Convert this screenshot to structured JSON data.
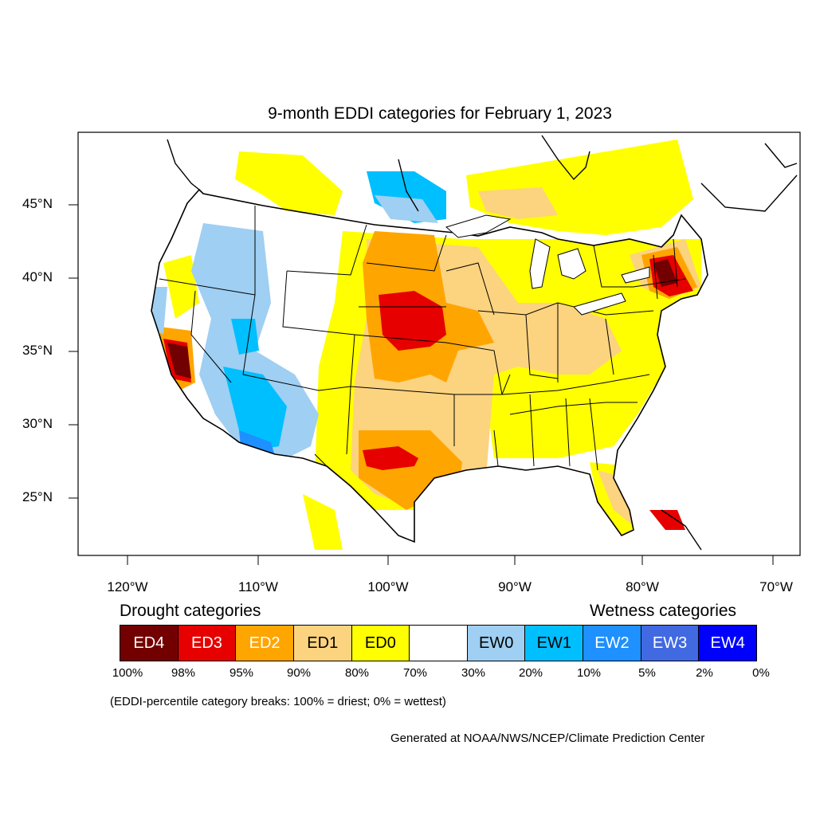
{
  "title": "9-month EDDI categories for February 1, 2023",
  "lat_labels": [
    "45°N",
    "40°N",
    "35°N",
    "30°N",
    "25°N"
  ],
  "lon_labels": [
    "120°W",
    "110°W",
    "100°W",
    "90°W",
    "80°W",
    "70°W"
  ],
  "legend": {
    "drought_heading": "Drought categories",
    "wetness_heading": "Wetness categories",
    "categories": [
      {
        "label": "ED4",
        "color": "#730000",
        "text_color": "#ffffff"
      },
      {
        "label": "ED3",
        "color": "#e60000",
        "text_color": "#ffffff"
      },
      {
        "label": "ED2",
        "color": "#ffa500",
        "text_color": "#ffffff"
      },
      {
        "label": "ED1",
        "color": "#fcd37f",
        "text_color": "#000000"
      },
      {
        "label": "ED0",
        "color": "#ffff00",
        "text_color": "#000000"
      },
      {
        "label": "",
        "color": "#ffffff",
        "text_color": "#000000"
      },
      {
        "label": "EW0",
        "color": "#9fcff2",
        "text_color": "#000000"
      },
      {
        "label": "EW1",
        "color": "#00bfff",
        "text_color": "#000000"
      },
      {
        "label": "EW2",
        "color": "#1e90ff",
        "text_color": "#ffffff"
      },
      {
        "label": "EW3",
        "color": "#4169e1",
        "text_color": "#ffffff"
      },
      {
        "label": "EW4",
        "color": "#0000ff",
        "text_color": "#ffffff"
      }
    ],
    "percentiles": [
      "100%",
      "98%",
      "95%",
      "90%",
      "80%",
      "70%",
      "30%",
      "20%",
      "10%",
      "5%",
      "2%",
      "0%"
    ]
  },
  "note": "(EDDI-percentile category breaks: 100% = driest; 0% = wettest)",
  "credit": "Generated at NOAA/NWS/NCEP/Climate Prediction Center",
  "colors": {
    "ED4": "#730000",
    "ED3": "#e60000",
    "ED2": "#ffa500",
    "ED1": "#fcd37f",
    "ED0": "#ffff00",
    "EW0": "#9fcff2",
    "EW1": "#00bfff",
    "EW2": "#1e90ff",
    "EW3": "#4169e1",
    "EW4": "#0000ff"
  }
}
